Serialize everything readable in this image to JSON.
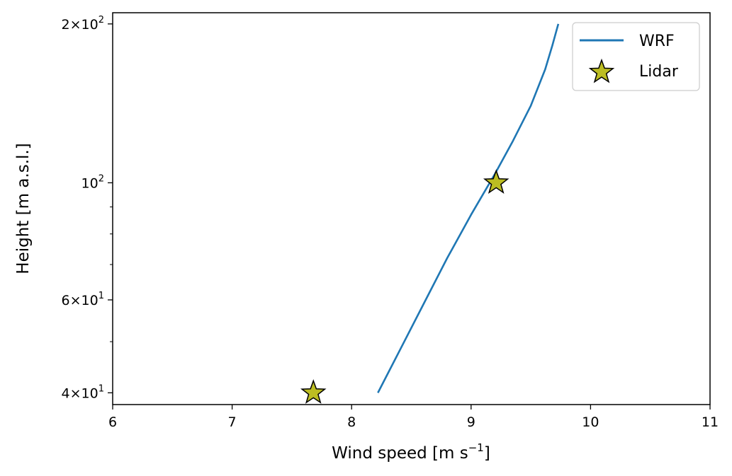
{
  "chart_data": {
    "type": "line",
    "xlabel": "Wind speed [m s",
    "xlabel_sup": "−1",
    "xlabel_end": "]",
    "ylabel": "Height [m a.s.l.]",
    "xlim": [
      6,
      11
    ],
    "ylim": [
      38,
      210
    ],
    "yscale": "log",
    "grid": false,
    "legend_position": "top-right",
    "x_ticks": [
      {
        "value": 6,
        "label": "6"
      },
      {
        "value": 7,
        "label": "7"
      },
      {
        "value": 8,
        "label": "8"
      },
      {
        "value": 9,
        "label": "9"
      },
      {
        "value": 10,
        "label": "10"
      },
      {
        "value": 11,
        "label": "11"
      }
    ],
    "y_major_ticks": [
      {
        "value": 40,
        "mant": "4",
        "exp": "1"
      },
      {
        "value": 60,
        "mant": "6",
        "exp": "1"
      },
      {
        "value": 100,
        "mant": "",
        "exp": "2"
      },
      {
        "value": 200,
        "mant": "2",
        "exp": "2"
      }
    ],
    "y_minor_ticks": [
      50,
      70,
      80,
      90,
      300
    ],
    "series": [
      {
        "name": "WRF",
        "kind": "line",
        "color": "#1f77b4",
        "x": [
          8.22,
          8.4,
          8.62,
          8.8,
          9.0,
          9.2,
          9.35,
          9.5,
          9.62,
          9.68,
          9.73
        ],
        "y": [
          40,
          48,
          60,
          72,
          87,
          104,
          120,
          140,
          164,
          182,
          200
        ]
      },
      {
        "name": "Lidar",
        "kind": "scatter",
        "marker": "star",
        "color": "#bcbd22",
        "edge_color": "#000000",
        "x": [
          7.68,
          9.21
        ],
        "y": [
          40,
          100
        ]
      }
    ]
  }
}
